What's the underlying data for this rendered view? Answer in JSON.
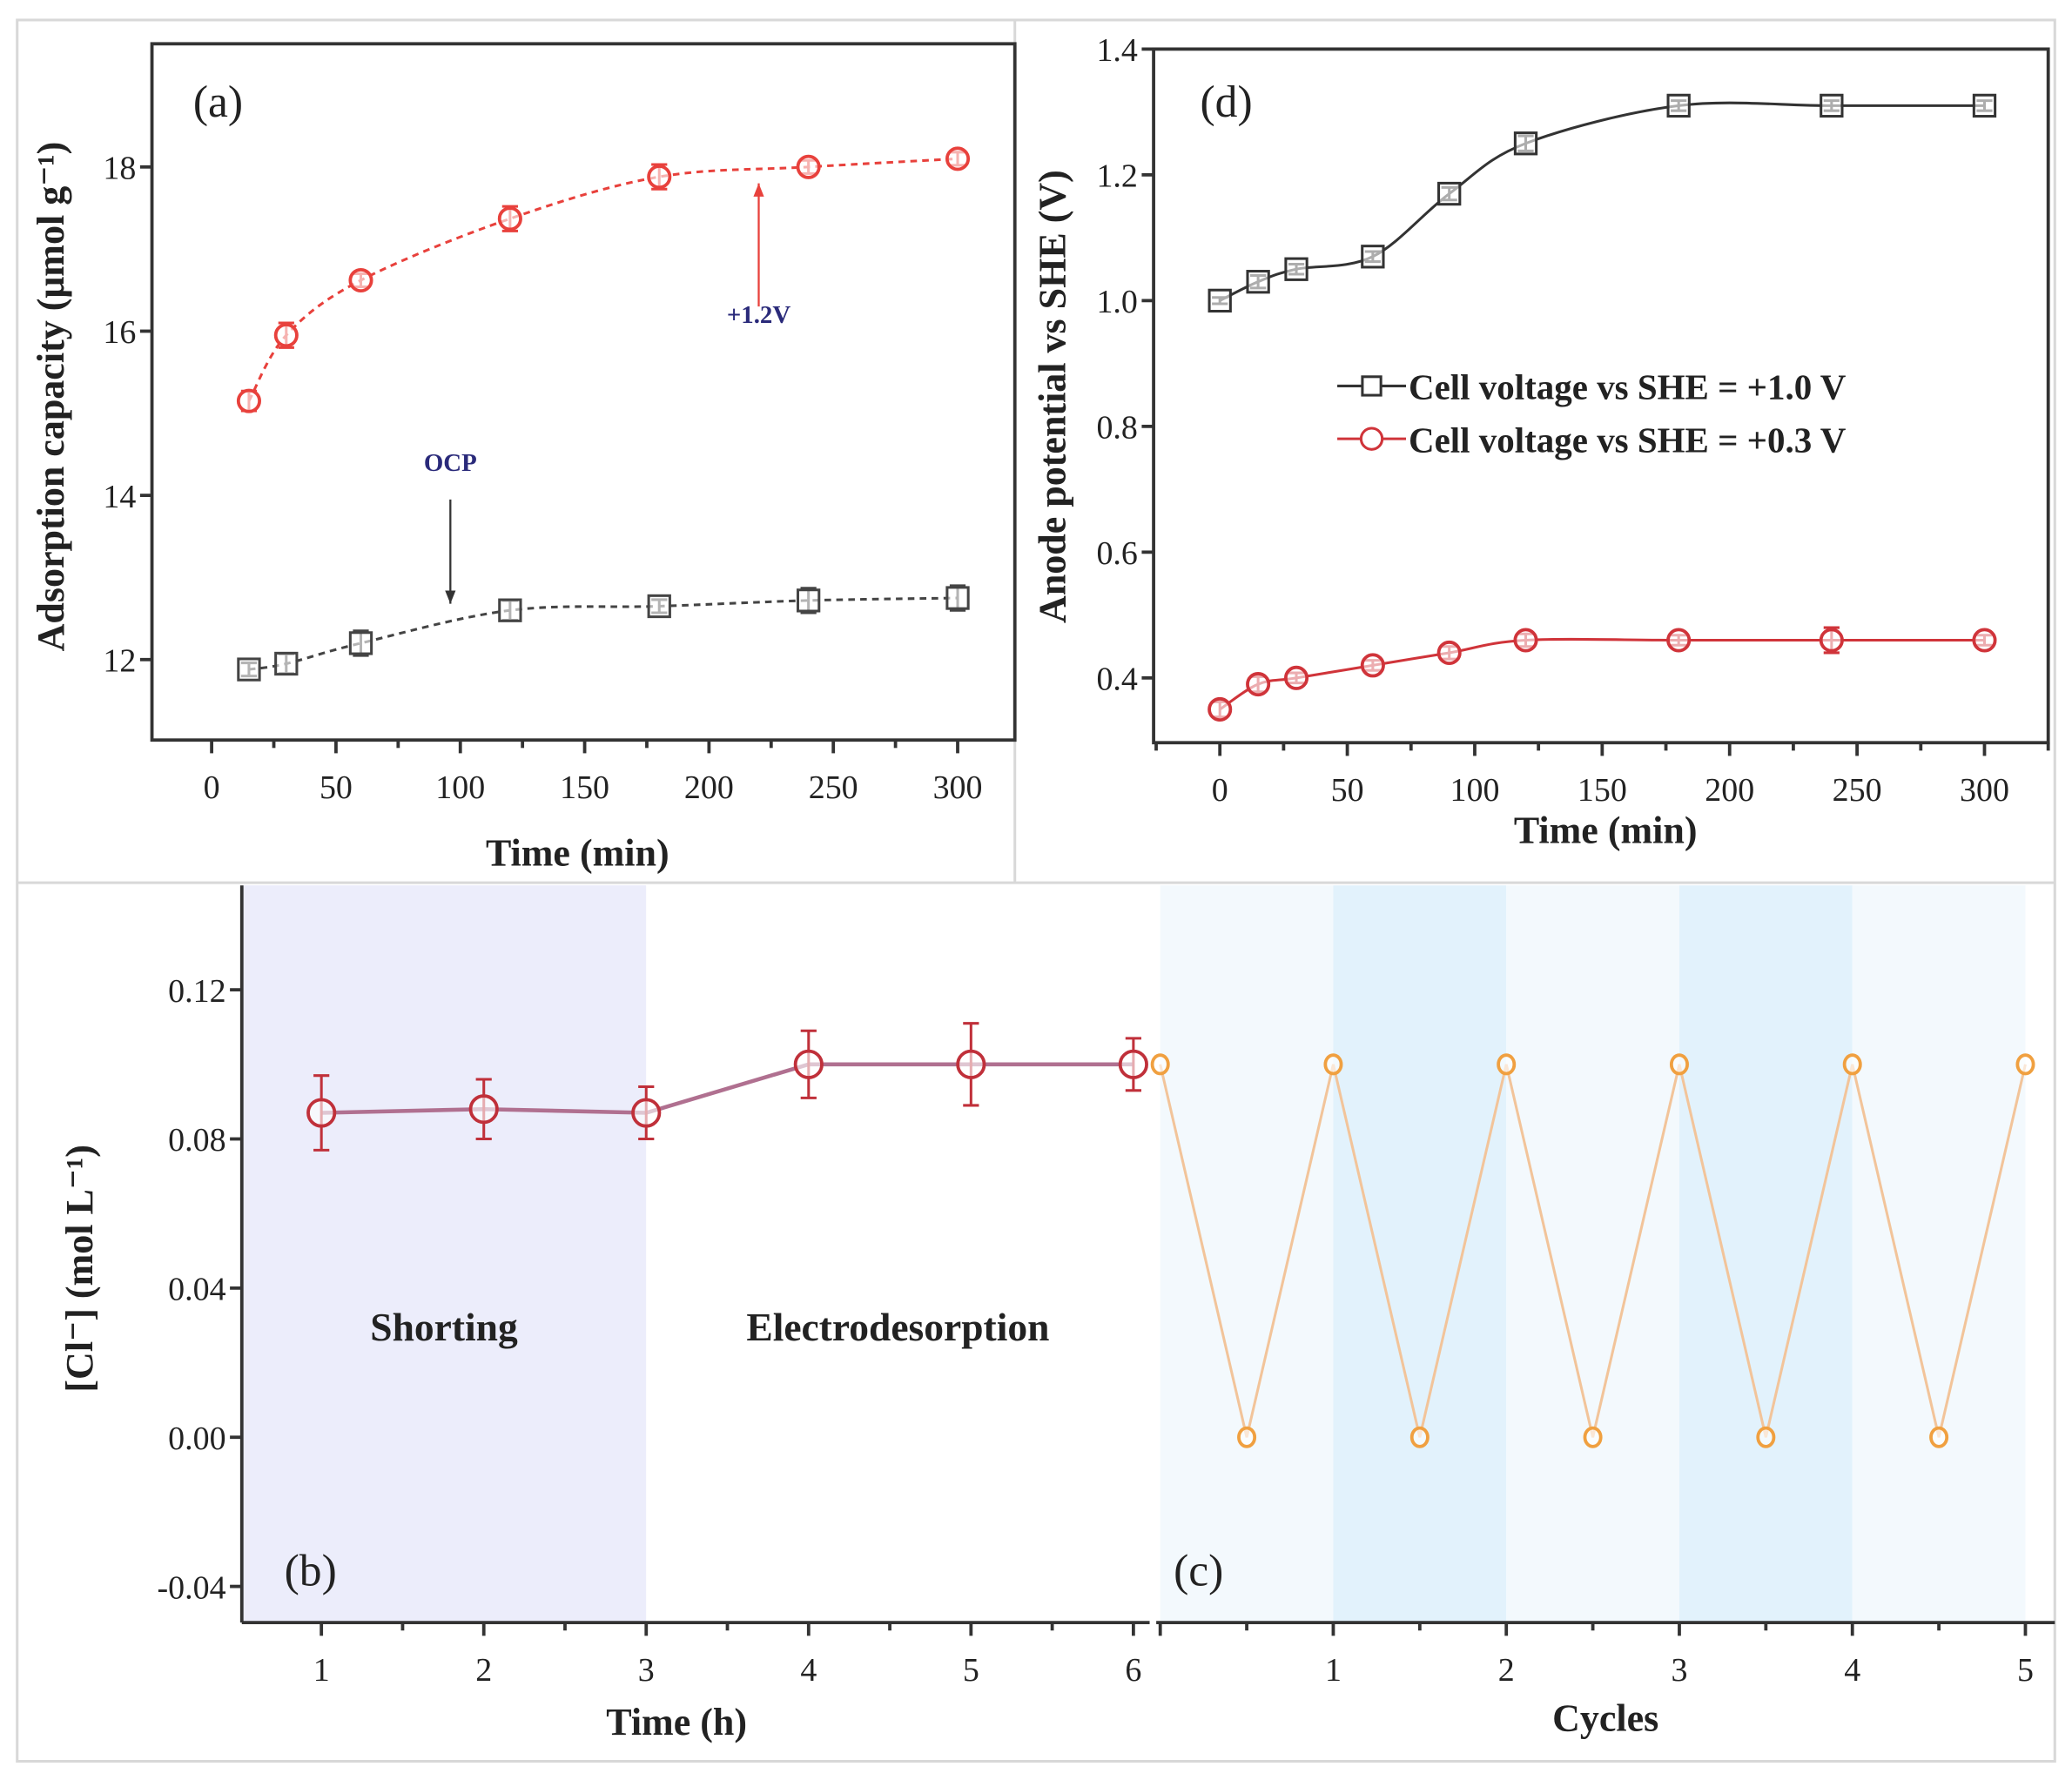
{
  "chart_data": [
    {
      "id": "a",
      "type": "line",
      "panel_label": "(a)",
      "title": "",
      "xlabel": "Time (min)",
      "ylabel": "Adsorption capacity (μmol g⁻¹)",
      "xlim": [
        -24,
        323
      ],
      "ylim": [
        11.02,
        19.5
      ],
      "xticks": [
        0,
        50,
        100,
        150,
        200,
        250,
        300
      ],
      "yticks": [
        12,
        14,
        16,
        18
      ],
      "grid": false,
      "series": [
        {
          "name": "+1.2V",
          "color": "#e8413c",
          "marker": "circle",
          "style": "dashed",
          "x": [
            15,
            30,
            60,
            120,
            180,
            240,
            300
          ],
          "y": [
            15.15,
            15.95,
            16.62,
            17.37,
            17.88,
            18.0,
            18.1
          ],
          "err": [
            0.12,
            0.15,
            0.08,
            0.15,
            0.15,
            0.08,
            0.08
          ]
        },
        {
          "name": "OCP",
          "color": "#444444",
          "marker": "square",
          "style": "dashed",
          "x": [
            15,
            30,
            60,
            120,
            180,
            240,
            300
          ],
          "y": [
            11.88,
            11.95,
            12.2,
            12.6,
            12.65,
            12.72,
            12.75
          ],
          "err": [
            0.08,
            0.12,
            0.15,
            0.12,
            0.08,
            0.15,
            0.15
          ]
        }
      ],
      "annotations": [
        {
          "text": "+1.2V",
          "x": 220,
          "y": 16.1,
          "arrow_from": [
            220,
            16.3
          ],
          "arrow_to": [
            220,
            17.8
          ],
          "color": "#e8413c"
        },
        {
          "text": "OCP",
          "x": 96,
          "y": 14.3,
          "arrow_from": [
            96,
            13.95
          ],
          "arrow_to": [
            96,
            12.68
          ],
          "color": "#333333"
        }
      ]
    },
    {
      "id": "d",
      "type": "line",
      "panel_label": "(d)",
      "xlabel": "Time (min)",
      "ylabel": "Anode potential vs SHE (V)",
      "xlim": [
        -26,
        325
      ],
      "ylim": [
        0.297,
        1.4
      ],
      "xticks": [
        0,
        50,
        100,
        150,
        200,
        250,
        300
      ],
      "yticks": [
        0.4,
        0.6,
        0.8,
        1.0,
        1.2,
        1.4
      ],
      "ytick_labels": [
        "0.4",
        "0.6",
        "0.8",
        "1.0",
        "1.2",
        "1.4"
      ],
      "grid": false,
      "legend_position": "center-right",
      "series": [
        {
          "name": "Cell voltage vs SHE = +1.0 V",
          "color": "#333333",
          "marker": "square",
          "style": "solid",
          "x": [
            0,
            15,
            30,
            60,
            90,
            120,
            180,
            240,
            300
          ],
          "y": [
            1.0,
            1.03,
            1.05,
            1.07,
            1.17,
            1.25,
            1.31,
            1.31,
            1.31
          ],
          "err": [
            0.005,
            0.01,
            0.008,
            0.008,
            0.01,
            0.012,
            0.008,
            0.008,
            0.008
          ]
        },
        {
          "name": "Cell voltage vs SHE = +0.3 V",
          "color": "#d0343a",
          "marker": "circle",
          "style": "solid",
          "x": [
            0,
            15,
            30,
            60,
            90,
            120,
            180,
            240,
            300
          ],
          "y": [
            0.35,
            0.39,
            0.4,
            0.42,
            0.44,
            0.46,
            0.46,
            0.46,
            0.46
          ],
          "err": [
            0.012,
            0.012,
            0.008,
            0.008,
            0.01,
            0.01,
            0.008,
            0.02,
            0.008
          ]
        }
      ]
    },
    {
      "id": "b",
      "type": "line",
      "panel_label": "(b)",
      "xlabel": "Time (h)",
      "ylabel": "[Cl⁻] (mol L⁻¹)",
      "xlim": [
        0.51,
        6.1
      ],
      "ylim": [
        -0.0497,
        0.148
      ],
      "xticks": [
        1,
        2,
        3,
        4,
        5,
        6
      ],
      "yticks": [
        -0.04,
        0.0,
        0.04,
        0.08,
        0.12
      ],
      "ytick_labels": [
        "-0.04",
        "0.00",
        "0.04",
        "0.08",
        "0.12"
      ],
      "regions": [
        {
          "label": "Shorting",
          "from": 0.51,
          "to": 3,
          "color": "#ecedfb"
        },
        {
          "label": "Electrodesorption",
          "from": 3,
          "to": 6.1,
          "color": "#ffffff"
        }
      ],
      "series": [
        {
          "name": "[Cl-]",
          "color": "#c0303a",
          "line_color": "#b07090",
          "marker": "circle",
          "x": [
            1,
            2,
            3,
            4,
            5,
            6
          ],
          "y": [
            0.087,
            0.088,
            0.087,
            0.1,
            0.1,
            0.1
          ],
          "err": [
            0.01,
            0.008,
            0.007,
            0.009,
            0.011,
            0.007
          ]
        }
      ]
    },
    {
      "id": "c",
      "type": "line",
      "panel_label": "(c)",
      "xlabel": "Cycles",
      "xlim": [
        -0.023,
        5.17
      ],
      "ylim": [
        -0.0497,
        0.148
      ],
      "xticks": [
        1,
        2,
        3,
        4,
        5
      ],
      "band_colors": [
        "#f3f9fd",
        "#e2f2fc"
      ],
      "series": [
        {
          "name": "cycle",
          "color": "#f0a040",
          "line_color": "#f2c49a",
          "marker": "circle",
          "x": [
            0,
            0.5,
            1,
            1.5,
            2,
            2.5,
            3,
            3.5,
            4,
            4.5,
            5
          ],
          "y": [
            0.1,
            0,
            0.1,
            0,
            0.1,
            0,
            0.1,
            0,
            0.1,
            0,
            0.1
          ]
        }
      ]
    }
  ]
}
